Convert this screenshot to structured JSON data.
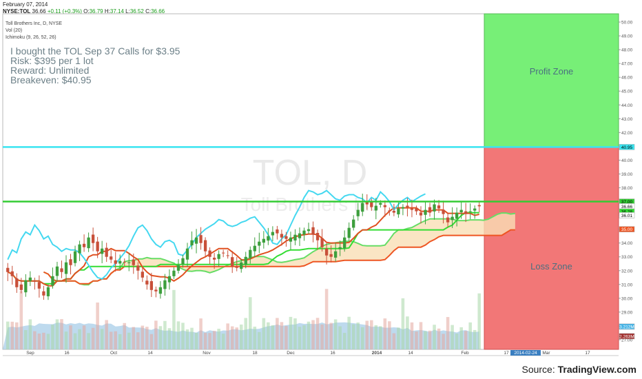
{
  "header": {
    "date": "February 07, 2014",
    "symbol": "NYSE:TOL",
    "last": "36.66",
    "change": "+0.11 (+0.3%)",
    "open_label": "O:",
    "open": "36.79",
    "high_label": "H:",
    "high": "37.14",
    "low_label": "L:",
    "low": "36.52",
    "close_label": "C:",
    "close": "36.66"
  },
  "study": {
    "name": "Toll Brothers Inc, D, NYSE",
    "vol": "Vol (20)",
    "ichimoku": "Ichimoku (9, 26, 52, 26)"
  },
  "watermark": {
    "ticker": "TOL, D",
    "company": "Toll Brothers Inc"
  },
  "note": {
    "line1": "I bought the TOL Sep 37 Calls for $3.95",
    "line2": "Risk: $395 per 1 lot",
    "line3": "Reward: Unlimited",
    "line4": "Breakeven: $40.95"
  },
  "zones": {
    "profit": "Profit Zone",
    "loss": "Loss Zone"
  },
  "badges": {
    "breakeven": "40.95",
    "strike": "37.00",
    "last": "36.66",
    "kijun": "36.28",
    "tenkan": "36.01",
    "cloud": "35.00",
    "vol1": "3.212M",
    "vol2": "2.263M"
  },
  "date_marker": "2014-02-24",
  "source": {
    "prefix": "Source: ",
    "site": "TradingView.com"
  },
  "colors": {
    "up": "#3d9f3d",
    "down": "#c8503a",
    "breakeven": "#39e4f0",
    "strike": "#33cc33",
    "tenkan": "#e05020",
    "kijun": "#33dd33",
    "chikou": "#44d8f0",
    "profit": "#77ef77",
    "loss": "#f27777",
    "cloud": "#f9dfb5",
    "volume": "#a8cde8"
  },
  "chart_data": {
    "type": "candlestick",
    "x_ticks": [
      "Sep",
      "16",
      "Oct",
      "14",
      "Nov",
      "18",
      "Dec",
      "16",
      "2014",
      "14",
      "Feb",
      "17",
      "Mar",
      "17"
    ],
    "y_ticks": [
      "27.00",
      "28.00",
      "29.00",
      "30.00",
      "31.00",
      "32.00",
      "33.00",
      "34.00",
      "35.00",
      "36.00",
      "37.00",
      "38.00",
      "39.00",
      "40.00",
      "41.00",
      "42.00",
      "43.00",
      "44.00",
      "45.00",
      "46.00",
      "47.00",
      "48.00",
      "49.00",
      "50.00"
    ],
    "ylim": [
      26.3,
      50.6
    ],
    "breakeven": 40.95,
    "strike": 37.0,
    "profit_zone": [
      40.95,
      50.6
    ],
    "loss_zone": [
      26.3,
      40.95
    ],
    "close": [
      31.9,
      31.6,
      30.8,
      30.6,
      31.3,
      31.5,
      31.2,
      30.7,
      30.2,
      30.8,
      31.6,
      32.3,
      31.9,
      32.6,
      32.4,
      33.4,
      33.9,
      33.7,
      34.4,
      34.0,
      33.4,
      33.6,
      33.0,
      32.8,
      32.5,
      32.7,
      32.6,
      32.6,
      32.4,
      32.0,
      31.5,
      31.0,
      30.6,
      30.5,
      30.8,
      31.3,
      31.6,
      32.0,
      32.4,
      32.9,
      33.6,
      34.2,
      34.4,
      34.0,
      33.4,
      33.0,
      32.8,
      33.2,
      33.3,
      33.1,
      32.3,
      32.2,
      32.6,
      33.0,
      33.5,
      33.8,
      34.1,
      34.3,
      34.5,
      34.8,
      34.7,
      34.4,
      34.3,
      34.4,
      34.6,
      34.7,
      34.9,
      35.0,
      34.6,
      34.2,
      33.7,
      33.1,
      33.0,
      33.4,
      33.7,
      34.4,
      35.1,
      35.7,
      36.4,
      36.9,
      36.8,
      36.6,
      36.7,
      36.9,
      36.6,
      36.3,
      36.2,
      36.5,
      36.6,
      36.6,
      36.4,
      36.3,
      36.0,
      36.4,
      36.2,
      36.8,
      36.5,
      36.1,
      35.5,
      35.9,
      36.2,
      36.4,
      36.1,
      36.3,
      36.5,
      36.66
    ],
    "volume_label": "Vol (20)",
    "indicators": [
      "Tenkan",
      "Kijun",
      "Senkou A",
      "Senkou B",
      "Chikou"
    ]
  }
}
